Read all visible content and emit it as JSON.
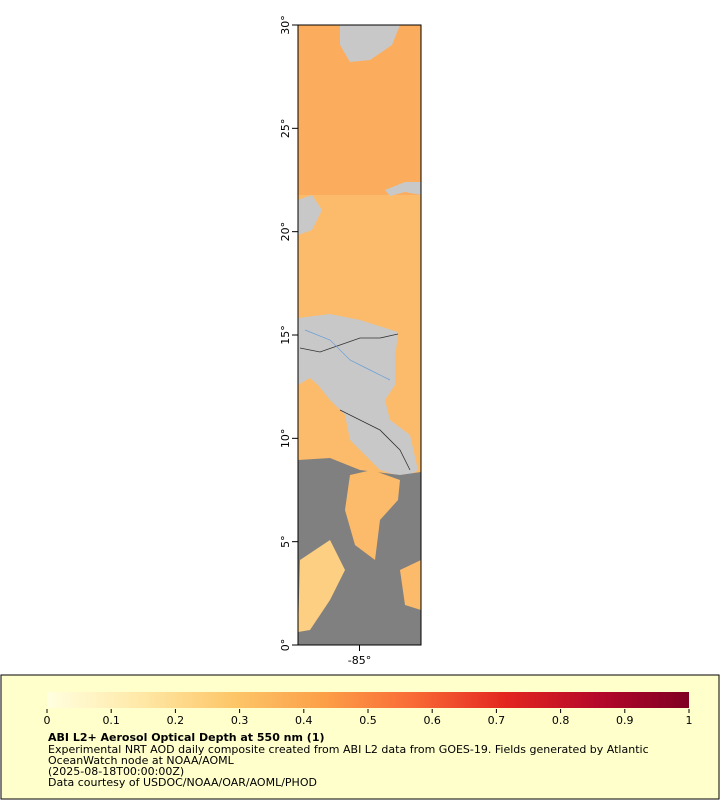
{
  "map": {
    "lat_range": [
      0,
      30
    ],
    "lon_range": [
      -88,
      -82
    ],
    "lat_ticks": [
      {
        "value": 0,
        "label": "0°"
      },
      {
        "value": 5,
        "label": "5°"
      },
      {
        "value": 10,
        "label": "10°"
      },
      {
        "value": 15,
        "label": "15°"
      },
      {
        "value": 20,
        "label": "20°"
      },
      {
        "value": 25,
        "label": "25°"
      },
      {
        "value": 30,
        "label": "30°"
      }
    ],
    "lon_ticks": [
      {
        "value": -85,
        "label": "-85°"
      }
    ]
  },
  "colorbar": {
    "range": [
      0,
      1
    ],
    "ticks": [
      0,
      0.1,
      0.2,
      0.3,
      0.4,
      0.5,
      0.6,
      0.7,
      0.8,
      0.9,
      1
    ],
    "colors": [
      "#ffffe0",
      "#ffe9a8",
      "#fdc76a",
      "#fca048",
      "#f96a35",
      "#e3261f",
      "#b5082a",
      "#7f0023"
    ]
  },
  "legend": {
    "title": "ABI L2+ Aerosol Optical Depth at 550 nm (1)",
    "lines": [
      "Experimental NRT AOD daily composite created from ABI L2 data from GOES-19. Fields generated by Atlantic",
      "OceanWatch node at NOAA/AOML",
      "(2025-08-18T00:00:00Z)",
      "Data courtesy of USDOC/NOAA/OAR/AOML/PHOD"
    ]
  }
}
